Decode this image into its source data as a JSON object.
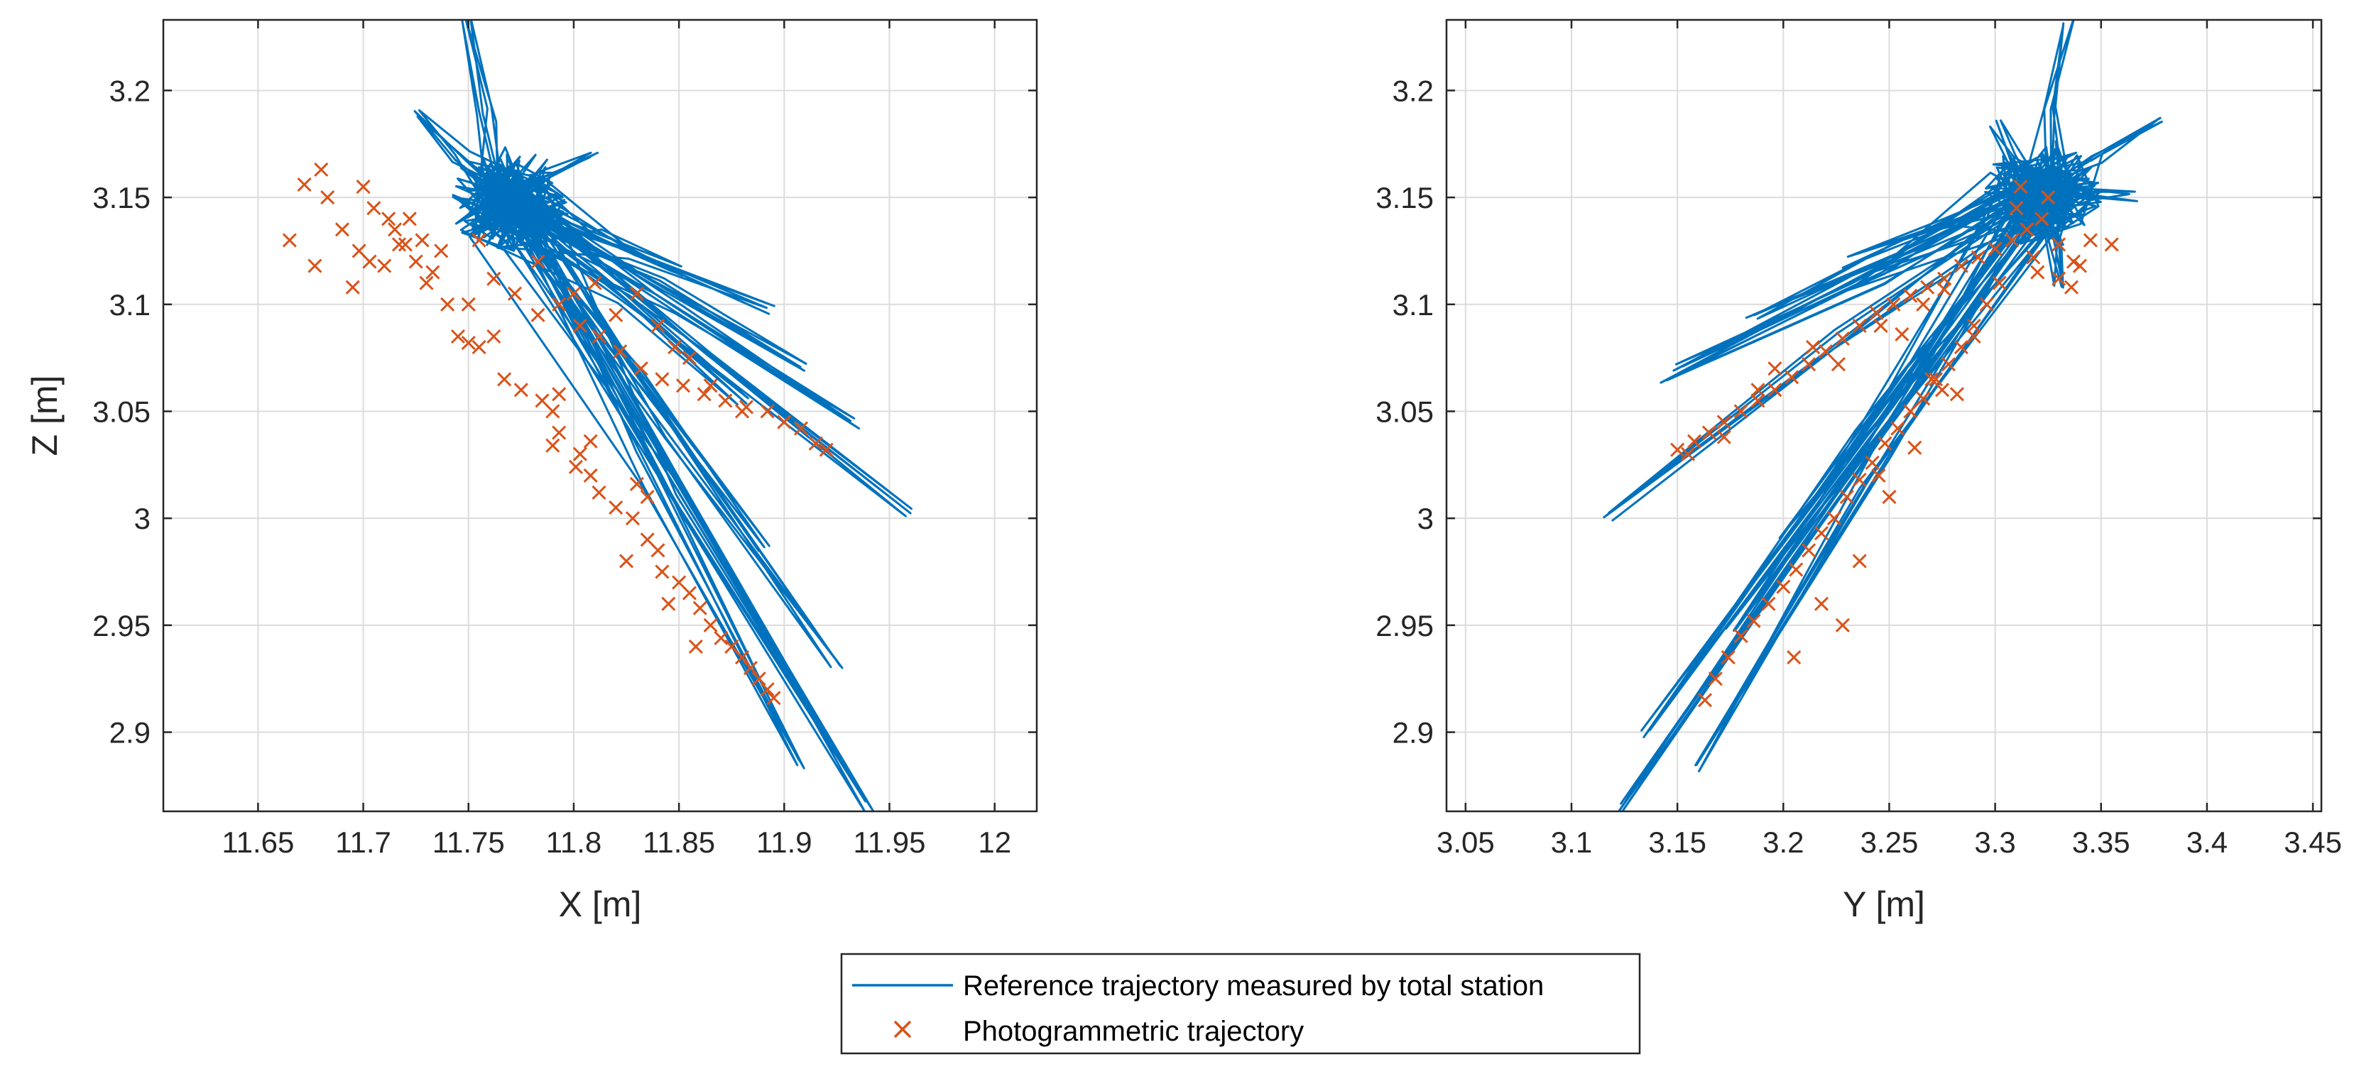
{
  "colors": {
    "reference": "#0072BD",
    "photogrammetric": "#D95319",
    "grid": "#dcdcdc",
    "axis": "#262626"
  },
  "legend": {
    "entries": [
      {
        "label": "Reference trajectory measured by total station",
        "marker": "line"
      },
      {
        "label": "Photogrammetric trajectory",
        "marker": "x"
      }
    ]
  },
  "chart_data": [
    {
      "type": "line+scatter",
      "title": "",
      "xlabel": "X [m]",
      "ylabel": "Z [m]",
      "xlim": [
        11.605,
        12.02
      ],
      "ylim": [
        2.863,
        3.233
      ],
      "xticks": [
        11.65,
        11.7,
        11.75,
        11.8,
        11.85,
        11.9,
        11.95,
        12
      ],
      "xtick_labels": [
        "11.65",
        "11.7",
        "11.75",
        "11.8",
        "11.85",
        "11.9",
        "11.95",
        "12"
      ],
      "yticks": [
        2.9,
        2.95,
        3,
        3.05,
        3.1,
        3.15,
        3.2
      ],
      "ytick_labels": [
        "2.9",
        "2.95",
        "3",
        "3.05",
        "3.1",
        "3.15",
        "3.2"
      ],
      "grid": true,
      "series": [
        {
          "name": "Reference trajectory measured by total station",
          "kind": "line",
          "hub": [
            11.768,
            3.15
          ],
          "spokes": [
            [
              11.75,
              3.233
            ],
            [
              11.96,
              3.002
            ],
            [
              11.893,
              3.098
            ],
            [
              11.91,
              3.07
            ],
            [
              11.933,
              3.045
            ],
            [
              11.89,
              2.985
            ],
            [
              11.935,
              2.875
            ],
            [
              11.907,
              2.885
            ],
            [
              11.94,
              2.865
            ],
            [
              11.725,
              3.188
            ],
            [
              11.81,
              3.17
            ],
            [
              11.795,
              3.14
            ],
            [
              11.85,
              3.115
            ],
            [
              11.88,
              3.055
            ],
            [
              11.925,
              2.93
            ]
          ]
        },
        {
          "name": "Photogrammetric trajectory",
          "kind": "scatter",
          "points": [
            [
              11.665,
              3.13
            ],
            [
              11.672,
              3.156
            ],
            [
              11.68,
              3.163
            ],
            [
              11.683,
              3.15
            ],
            [
              11.69,
              3.135
            ],
            [
              11.677,
              3.118
            ],
            [
              11.695,
              3.108
            ],
            [
              11.7,
              3.155
            ],
            [
              11.703,
              3.12
            ],
            [
              11.712,
              3.14
            ],
            [
              11.72,
              3.128
            ],
            [
              11.73,
              3.11
            ],
            [
              11.737,
              3.125
            ],
            [
              11.75,
              3.1
            ],
            [
              11.755,
              3.13
            ],
            [
              11.762,
              3.112
            ],
            [
              11.772,
              3.105
            ],
            [
              11.783,
              3.095
            ],
            [
              11.793,
              3.1
            ],
            [
              11.803,
              3.09
            ],
            [
              11.812,
              3.085
            ],
            [
              11.822,
              3.078
            ],
            [
              11.832,
              3.07
            ],
            [
              11.842,
              3.065
            ],
            [
              11.852,
              3.062
            ],
            [
              11.862,
              3.058
            ],
            [
              11.872,
              3.055
            ],
            [
              11.882,
              3.052
            ],
            [
              11.892,
              3.05
            ],
            [
              11.9,
              3.045
            ],
            [
              11.908,
              3.042
            ],
            [
              11.915,
              3.035
            ],
            [
              11.92,
              3.032
            ],
            [
              11.755,
              3.08
            ],
            [
              11.762,
              3.085
            ],
            [
              11.767,
              3.065
            ],
            [
              11.775,
              3.06
            ],
            [
              11.785,
              3.055
            ],
            [
              11.79,
              3.05
            ],
            [
              11.793,
              3.04
            ],
            [
              11.803,
              3.03
            ],
            [
              11.808,
              3.02
            ],
            [
              11.812,
              3.012
            ],
            [
              11.82,
              3.005
            ],
            [
              11.828,
              3.0
            ],
            [
              11.835,
              2.99
            ],
            [
              11.84,
              2.985
            ],
            [
              11.842,
              2.975
            ],
            [
              11.85,
              2.97
            ],
            [
              11.855,
              2.965
            ],
            [
              11.86,
              2.958
            ],
            [
              11.865,
              2.95
            ],
            [
              11.87,
              2.944
            ],
            [
              11.875,
              2.94
            ],
            [
              11.88,
              2.935
            ],
            [
              11.884,
              2.93
            ],
            [
              11.888,
              2.925
            ],
            [
              11.892,
              2.92
            ],
            [
              11.895,
              2.916
            ],
            [
              11.858,
              2.94
            ],
            [
              11.845,
              2.96
            ],
            [
              11.825,
              2.98
            ],
            [
              11.835,
              3.01
            ],
            [
              11.83,
              3.016
            ],
            [
              11.808,
              3.036
            ],
            [
              11.801,
              3.024
            ],
            [
              11.793,
              3.058
            ],
            [
              11.79,
              3.034
            ],
            [
              11.745,
              3.085
            ],
            [
              11.75,
              3.082
            ],
            [
              11.74,
              3.1
            ],
            [
              11.733,
              3.115
            ],
            [
              11.728,
              3.13
            ],
            [
              11.722,
              3.14
            ],
            [
              11.71,
              3.118
            ],
            [
              11.698,
              3.125
            ],
            [
              11.715,
              3.135
            ],
            [
              11.705,
              3.145
            ],
            [
              11.725,
              3.12
            ],
            [
              11.717,
              3.128
            ],
            [
              11.84,
              3.09
            ],
            [
              11.848,
              3.08
            ],
            [
              11.855,
              3.075
            ],
            [
              11.865,
              3.062
            ],
            [
              11.88,
              3.05
            ],
            [
              11.83,
              3.105
            ],
            [
              11.82,
              3.095
            ],
            [
              11.81,
              3.11
            ],
            [
              11.8,
              3.105
            ],
            [
              11.783,
              3.12
            ]
          ]
        }
      ]
    },
    {
      "type": "line+scatter",
      "title": "",
      "xlabel": "Y [m]",
      "ylabel": "",
      "xlim": [
        3.041,
        3.454
      ],
      "ylim": [
        2.863,
        3.233
      ],
      "xticks": [
        3.05,
        3.1,
        3.15,
        3.2,
        3.25,
        3.3,
        3.35,
        3.4,
        3.45
      ],
      "xtick_labels": [
        "3.05",
        "3.1",
        "3.15",
        "3.2",
        "3.25",
        "3.3",
        "3.35",
        "3.4",
        "3.45"
      ],
      "yticks": [
        2.9,
        2.95,
        3,
        3.05,
        3.1,
        3.15,
        3.2
      ],
      "ytick_labels": [
        "2.9",
        "2.95",
        "3",
        "3.05",
        "3.1",
        "3.15",
        "3.2"
      ],
      "grid": true,
      "series": [
        {
          "name": "Reference trajectory measured by total station",
          "kind": "line",
          "hub": [
            3.322,
            3.152
          ],
          "spokes": [
            [
              3.118,
              3.002
            ],
            [
              3.122,
              2.864
            ],
            [
              3.16,
              2.882
            ],
            [
              3.2,
              2.99
            ],
            [
              3.335,
              3.233
            ],
            [
              3.378,
              3.188
            ],
            [
              3.15,
              3.072
            ],
            [
              3.185,
              3.095
            ],
            [
              3.145,
              3.065
            ],
            [
              3.135,
              2.9
            ],
            [
              3.365,
              3.15
            ],
            [
              3.3,
              3.185
            ],
            [
              3.33,
              3.11
            ],
            [
              3.23,
              3.12
            ],
            [
              3.175,
              2.95
            ]
          ]
        },
        {
          "name": "Photogrammetric trajectory",
          "kind": "scatter",
          "points": [
            [
              3.15,
              3.032
            ],
            [
              3.158,
              3.036
            ],
            [
              3.165,
              3.04
            ],
            [
              3.172,
              3.045
            ],
            [
              3.18,
              3.05
            ],
            [
              3.188,
              3.055
            ],
            [
              3.196,
              3.06
            ],
            [
              3.204,
              3.066
            ],
            [
              3.212,
              3.072
            ],
            [
              3.22,
              3.078
            ],
            [
              3.228,
              3.084
            ],
            [
              3.236,
              3.09
            ],
            [
              3.244,
              3.096
            ],
            [
              3.252,
              3.1
            ],
            [
              3.26,
              3.104
            ],
            [
              3.268,
              3.108
            ],
            [
              3.276,
              3.112
            ],
            [
              3.284,
              3.118
            ],
            [
              3.292,
              3.122
            ],
            [
              3.3,
              3.126
            ],
            [
              3.308,
              3.13
            ],
            [
              3.315,
              3.135
            ],
            [
              3.322,
              3.14
            ],
            [
              3.33,
              3.128
            ],
            [
              3.337,
              3.12
            ],
            [
              3.345,
              3.13
            ],
            [
              3.355,
              3.128
            ],
            [
              3.325,
              3.15
            ],
            [
              3.31,
              3.145
            ],
            [
              3.318,
              3.122
            ],
            [
              3.163,
              2.915
            ],
            [
              3.168,
              2.925
            ],
            [
              3.174,
              2.935
            ],
            [
              3.18,
              2.945
            ],
            [
              3.186,
              2.952
            ],
            [
              3.193,
              2.96
            ],
            [
              3.2,
              2.968
            ],
            [
              3.206,
              2.976
            ],
            [
              3.212,
              2.985
            ],
            [
              3.218,
              2.993
            ],
            [
              3.224,
              3.0
            ],
            [
              3.23,
              3.01
            ],
            [
              3.236,
              3.018
            ],
            [
              3.242,
              3.026
            ],
            [
              3.248,
              3.035
            ],
            [
              3.254,
              3.042
            ],
            [
              3.26,
              3.05
            ],
            [
              3.266,
              3.056
            ],
            [
              3.272,
              3.065
            ],
            [
              3.278,
              3.072
            ],
            [
              3.284,
              3.08
            ],
            [
              3.29,
              3.09
            ],
            [
              3.296,
              3.1
            ],
            [
              3.302,
              3.11
            ],
            [
              3.205,
              2.935
            ],
            [
              3.218,
              2.96
            ],
            [
              3.236,
              2.98
            ],
            [
              3.262,
              3.033
            ],
            [
              3.27,
              3.065
            ],
            [
              3.29,
              3.085
            ],
            [
              3.214,
              3.08
            ],
            [
              3.226,
              3.072
            ],
            [
              3.196,
              3.07
            ],
            [
              3.188,
              3.06
            ],
            [
              3.246,
              3.09
            ],
            [
              3.256,
              3.086
            ],
            [
              3.266,
              3.1
            ],
            [
              3.276,
              3.107
            ],
            [
              3.172,
              3.038
            ],
            [
              3.155,
              3.03
            ],
            [
              3.33,
              3.112
            ],
            [
              3.336,
              3.108
            ],
            [
              3.32,
              3.115
            ],
            [
              3.312,
              3.155
            ],
            [
              3.34,
              3.118
            ],
            [
              3.228,
              2.95
            ],
            [
              3.245,
              3.02
            ],
            [
              3.25,
              3.01
            ],
            [
              3.282,
              3.058
            ],
            [
              3.275,
              3.06
            ]
          ]
        }
      ]
    }
  ]
}
